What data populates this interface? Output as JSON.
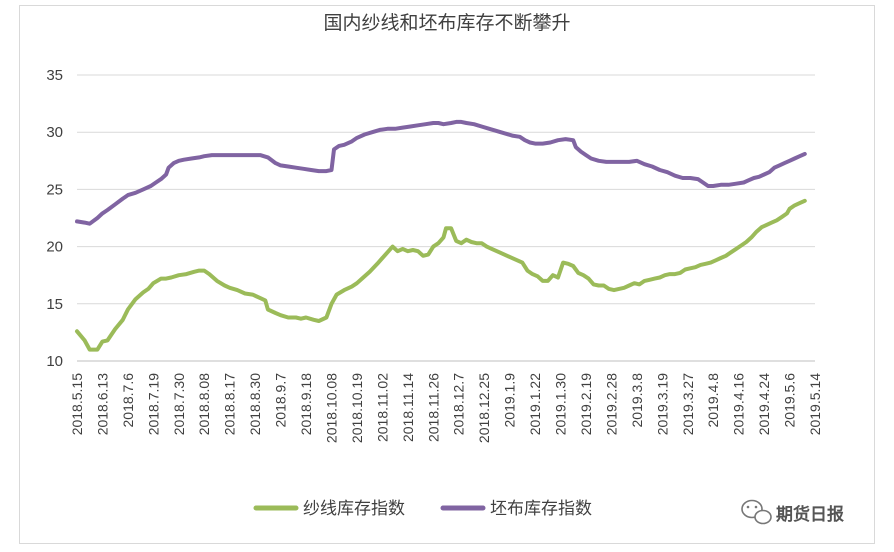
{
  "chart_data": {
    "type": "line",
    "title": "国内纱线和坯布库存不断攀升",
    "xlabel": "",
    "ylabel": "",
    "ylim": [
      10,
      35
    ],
    "yticks": [
      10,
      15,
      20,
      25,
      30,
      35
    ],
    "grid": true,
    "legend_position": "bottom",
    "x_tick_labels": [
      "2018.5.15",
      "2018.6.13",
      "2018.7.6",
      "2018.7.19",
      "2018.7.30",
      "2018.8.08",
      "2018.8.17",
      "2018.8.30",
      "2018.9.7",
      "2018.9.18",
      "2018.10.08",
      "2018.10.19",
      "2018.11.02",
      "2018.11.14",
      "2018.11.26",
      "2018.12.7",
      "2018.12.25",
      "2019.1.9",
      "2019.1.22",
      "2019.1.30",
      "2019.2.19",
      "2019.2.28",
      "2019.3.8",
      "2019.3.19",
      "2019.3.27",
      "2019.4.8",
      "2019.4.16",
      "2019.4.24",
      "2019.5.6",
      "2019.5.14"
    ],
    "series": [
      {
        "name": "纱线库存指数",
        "color": "#9bbb59",
        "points": [
          [
            0,
            12.6
          ],
          [
            0.3,
            11.8
          ],
          [
            0.5,
            11.0
          ],
          [
            0.8,
            11.0
          ],
          [
            1.0,
            11.7
          ],
          [
            1.2,
            11.8
          ],
          [
            1.5,
            12.8
          ],
          [
            1.8,
            13.6
          ],
          [
            2.0,
            14.5
          ],
          [
            2.3,
            15.4
          ],
          [
            2.6,
            16.0
          ],
          [
            2.8,
            16.3
          ],
          [
            3.0,
            16.8
          ],
          [
            3.3,
            17.2
          ],
          [
            3.5,
            17.2
          ],
          [
            3.7,
            17.3
          ],
          [
            4.0,
            17.5
          ],
          [
            4.3,
            17.6
          ],
          [
            4.6,
            17.8
          ],
          [
            4.8,
            17.9
          ],
          [
            5.0,
            17.9
          ],
          [
            5.2,
            17.6
          ],
          [
            5.5,
            17.0
          ],
          [
            5.8,
            16.6
          ],
          [
            6.0,
            16.4
          ],
          [
            6.3,
            16.2
          ],
          [
            6.6,
            15.9
          ],
          [
            6.9,
            15.8
          ],
          [
            7.2,
            15.5
          ],
          [
            7.4,
            15.3
          ],
          [
            7.5,
            14.5
          ],
          [
            7.8,
            14.2
          ],
          [
            8.0,
            14.0
          ],
          [
            8.3,
            13.8
          ],
          [
            8.6,
            13.8
          ],
          [
            8.8,
            13.7
          ],
          [
            9.0,
            13.8
          ],
          [
            9.3,
            13.6
          ],
          [
            9.5,
            13.5
          ],
          [
            9.8,
            13.8
          ],
          [
            10.0,
            15.0
          ],
          [
            10.2,
            15.8
          ],
          [
            10.5,
            16.2
          ],
          [
            10.8,
            16.5
          ],
          [
            11.0,
            16.8
          ],
          [
            11.2,
            17.2
          ],
          [
            11.5,
            17.8
          ],
          [
            11.8,
            18.5
          ],
          [
            12.0,
            19.0
          ],
          [
            12.2,
            19.5
          ],
          [
            12.4,
            20.0
          ],
          [
            12.6,
            19.6
          ],
          [
            12.8,
            19.8
          ],
          [
            13.0,
            19.6
          ],
          [
            13.2,
            19.7
          ],
          [
            13.4,
            19.6
          ],
          [
            13.6,
            19.2
          ],
          [
            13.8,
            19.3
          ],
          [
            14.0,
            20.0
          ],
          [
            14.2,
            20.3
          ],
          [
            14.4,
            20.8
          ],
          [
            14.5,
            21.6
          ],
          [
            14.7,
            21.6
          ],
          [
            14.9,
            20.5
          ],
          [
            15.1,
            20.3
          ],
          [
            15.3,
            20.6
          ],
          [
            15.5,
            20.4
          ],
          [
            15.7,
            20.3
          ],
          [
            15.9,
            20.3
          ],
          [
            16.1,
            20.0
          ],
          [
            16.3,
            19.8
          ],
          [
            16.6,
            19.5
          ],
          [
            16.9,
            19.2
          ],
          [
            17.2,
            18.9
          ],
          [
            17.5,
            18.6
          ],
          [
            17.7,
            17.9
          ],
          [
            17.9,
            17.6
          ],
          [
            18.1,
            17.4
          ],
          [
            18.3,
            17.0
          ],
          [
            18.5,
            17.0
          ],
          [
            18.7,
            17.5
          ],
          [
            18.9,
            17.3
          ],
          [
            19.1,
            18.6
          ],
          [
            19.3,
            18.5
          ],
          [
            19.5,
            18.3
          ],
          [
            19.7,
            17.7
          ],
          [
            19.9,
            17.5
          ],
          [
            20.1,
            17.2
          ],
          [
            20.3,
            16.7
          ],
          [
            20.5,
            16.6
          ],
          [
            20.7,
            16.6
          ],
          [
            20.9,
            16.3
          ],
          [
            21.1,
            16.2
          ],
          [
            21.3,
            16.3
          ],
          [
            21.5,
            16.4
          ],
          [
            21.7,
            16.6
          ],
          [
            21.9,
            16.8
          ],
          [
            22.1,
            16.7
          ],
          [
            22.3,
            17.0
          ],
          [
            22.5,
            17.1
          ],
          [
            22.7,
            17.2
          ],
          [
            22.9,
            17.3
          ],
          [
            23.1,
            17.5
          ],
          [
            23.3,
            17.6
          ],
          [
            23.5,
            17.6
          ],
          [
            23.7,
            17.7
          ],
          [
            23.9,
            18.0
          ],
          [
            24.1,
            18.1
          ],
          [
            24.3,
            18.2
          ],
          [
            24.5,
            18.4
          ],
          [
            24.7,
            18.5
          ],
          [
            24.9,
            18.6
          ],
          [
            25.1,
            18.8
          ],
          [
            25.3,
            19.0
          ],
          [
            25.5,
            19.2
          ],
          [
            25.7,
            19.5
          ],
          [
            25.9,
            19.8
          ],
          [
            26.1,
            20.1
          ],
          [
            26.3,
            20.4
          ],
          [
            26.5,
            20.8
          ],
          [
            26.7,
            21.3
          ],
          [
            26.9,
            21.7
          ],
          [
            27.1,
            21.9
          ],
          [
            27.3,
            22.1
          ],
          [
            27.5,
            22.3
          ],
          [
            27.7,
            22.6
          ],
          [
            27.9,
            22.9
          ],
          [
            28.0,
            23.3
          ],
          [
            28.2,
            23.6
          ],
          [
            28.4,
            23.8
          ],
          [
            28.6,
            24.0
          ]
        ]
      },
      {
        "name": "坯布库存指数",
        "color": "#8064a2",
        "points": [
          [
            0,
            22.2
          ],
          [
            0.3,
            22.1
          ],
          [
            0.5,
            22.0
          ],
          [
            0.8,
            22.5
          ],
          [
            1.0,
            22.9
          ],
          [
            1.2,
            23.2
          ],
          [
            1.5,
            23.7
          ],
          [
            1.8,
            24.2
          ],
          [
            2.0,
            24.5
          ],
          [
            2.3,
            24.7
          ],
          [
            2.6,
            25.0
          ],
          [
            2.9,
            25.3
          ],
          [
            3.1,
            25.6
          ],
          [
            3.3,
            25.9
          ],
          [
            3.5,
            26.3
          ],
          [
            3.6,
            26.9
          ],
          [
            3.8,
            27.3
          ],
          [
            4.0,
            27.5
          ],
          [
            4.2,
            27.6
          ],
          [
            4.5,
            27.7
          ],
          [
            4.8,
            27.8
          ],
          [
            5.0,
            27.9
          ],
          [
            5.3,
            28.0
          ],
          [
            5.6,
            28.0
          ],
          [
            5.9,
            28.0
          ],
          [
            6.2,
            28.0
          ],
          [
            6.5,
            28.0
          ],
          [
            6.8,
            28.0
          ],
          [
            7.0,
            28.0
          ],
          [
            7.2,
            28.0
          ],
          [
            7.5,
            27.8
          ],
          [
            7.8,
            27.3
          ],
          [
            8.0,
            27.1
          ],
          [
            8.3,
            27.0
          ],
          [
            8.6,
            26.9
          ],
          [
            8.9,
            26.8
          ],
          [
            9.2,
            26.7
          ],
          [
            9.5,
            26.6
          ],
          [
            9.8,
            26.6
          ],
          [
            10.0,
            26.7
          ],
          [
            10.1,
            28.5
          ],
          [
            10.3,
            28.8
          ],
          [
            10.5,
            28.9
          ],
          [
            10.8,
            29.2
          ],
          [
            11.0,
            29.5
          ],
          [
            11.3,
            29.8
          ],
          [
            11.6,
            30.0
          ],
          [
            11.9,
            30.2
          ],
          [
            12.2,
            30.3
          ],
          [
            12.5,
            30.3
          ],
          [
            12.8,
            30.4
          ],
          [
            13.1,
            30.5
          ],
          [
            13.4,
            30.6
          ],
          [
            13.7,
            30.7
          ],
          [
            14.0,
            30.8
          ],
          [
            14.2,
            30.8
          ],
          [
            14.4,
            30.7
          ],
          [
            14.7,
            30.8
          ],
          [
            14.9,
            30.9
          ],
          [
            15.1,
            30.9
          ],
          [
            15.3,
            30.8
          ],
          [
            15.6,
            30.7
          ],
          [
            15.9,
            30.5
          ],
          [
            16.2,
            30.3
          ],
          [
            16.5,
            30.1
          ],
          [
            16.8,
            29.9
          ],
          [
            17.1,
            29.7
          ],
          [
            17.4,
            29.6
          ],
          [
            17.6,
            29.3
          ],
          [
            17.8,
            29.1
          ],
          [
            18.0,
            29.0
          ],
          [
            18.3,
            29.0
          ],
          [
            18.6,
            29.1
          ],
          [
            18.9,
            29.3
          ],
          [
            19.2,
            29.4
          ],
          [
            19.5,
            29.3
          ],
          [
            19.6,
            28.7
          ],
          [
            19.8,
            28.3
          ],
          [
            20.0,
            28.0
          ],
          [
            20.2,
            27.7
          ],
          [
            20.5,
            27.5
          ],
          [
            20.8,
            27.4
          ],
          [
            21.1,
            27.4
          ],
          [
            21.4,
            27.4
          ],
          [
            21.7,
            27.4
          ],
          [
            22.0,
            27.5
          ],
          [
            22.3,
            27.2
          ],
          [
            22.6,
            27.0
          ],
          [
            22.9,
            26.7
          ],
          [
            23.2,
            26.5
          ],
          [
            23.5,
            26.2
          ],
          [
            23.8,
            26.0
          ],
          [
            24.1,
            26.0
          ],
          [
            24.4,
            25.9
          ],
          [
            24.6,
            25.6
          ],
          [
            24.8,
            25.3
          ],
          [
            25.0,
            25.3
          ],
          [
            25.3,
            25.4
          ],
          [
            25.6,
            25.4
          ],
          [
            25.9,
            25.5
          ],
          [
            26.2,
            25.6
          ],
          [
            26.4,
            25.8
          ],
          [
            26.6,
            26.0
          ],
          [
            26.8,
            26.1
          ],
          [
            27.0,
            26.3
          ],
          [
            27.2,
            26.5
          ],
          [
            27.4,
            26.9
          ],
          [
            27.6,
            27.1
          ],
          [
            27.8,
            27.3
          ],
          [
            28.0,
            27.5
          ],
          [
            28.2,
            27.7
          ],
          [
            28.4,
            27.9
          ],
          [
            28.6,
            28.1
          ]
        ]
      }
    ]
  },
  "watermark": {
    "text": "期货日报",
    "icon": "wechat-icon"
  }
}
